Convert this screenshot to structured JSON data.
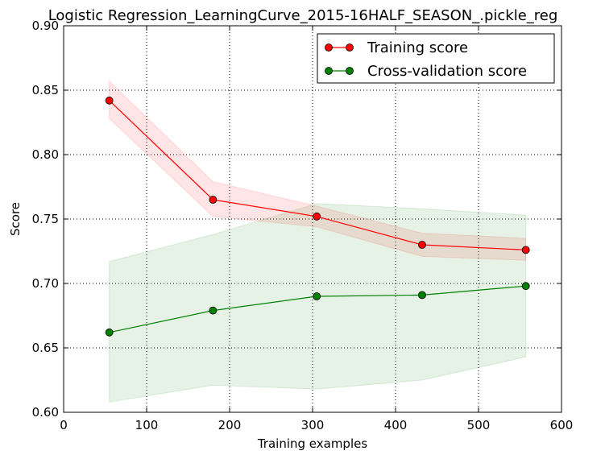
{
  "chart_data": {
    "type": "line",
    "title": "Logistic Regression_LearningCurve_2015-16HALF_SEASON_.pickle_reg",
    "xlabel": "Training examples",
    "ylabel": "Score",
    "xlim": [
      0,
      600
    ],
    "ylim": [
      0.6,
      0.9
    ],
    "xticks": [
      0,
      100,
      200,
      300,
      400,
      500,
      600
    ],
    "xtick_labels": [
      "0",
      "100",
      "200",
      "300",
      "400",
      "500",
      "600"
    ],
    "yticks": [
      0.6,
      0.65,
      0.7,
      0.75,
      0.8,
      0.85,
      0.9
    ],
    "ytick_labels": [
      "0.60",
      "0.65",
      "0.70",
      "0.75",
      "0.80",
      "0.85",
      "0.90"
    ],
    "grid": true,
    "legend_position": "top-right",
    "x": [
      55,
      180,
      305,
      432,
      557
    ],
    "series": [
      {
        "name": "Training score",
        "color": "#ff0000",
        "values": [
          0.842,
          0.765,
          0.752,
          0.73,
          0.726
        ],
        "band_upper": [
          0.857,
          0.779,
          0.76,
          0.739,
          0.735
        ],
        "band_lower": [
          0.828,
          0.752,
          0.744,
          0.721,
          0.718
        ]
      },
      {
        "name": "Cross-validation score",
        "color": "#008000",
        "values": [
          0.662,
          0.679,
          0.69,
          0.691,
          0.698
        ],
        "band_upper": [
          0.717,
          0.738,
          0.762,
          0.758,
          0.753
        ],
        "band_lower": [
          0.608,
          0.621,
          0.618,
          0.625,
          0.643
        ]
      }
    ]
  }
}
